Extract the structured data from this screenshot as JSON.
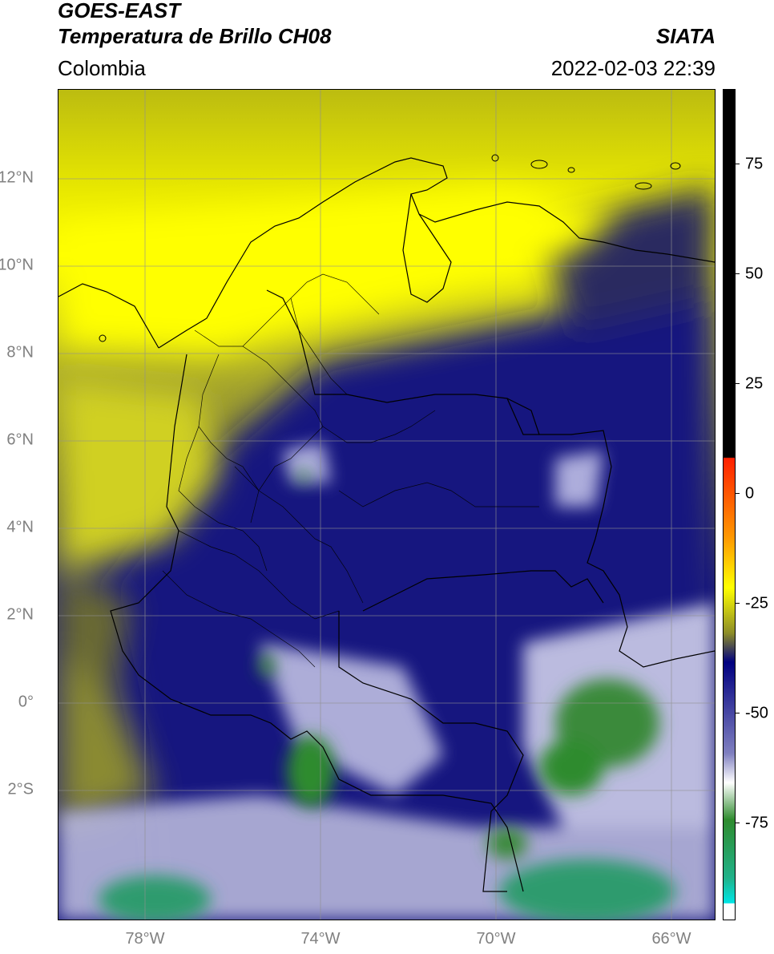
{
  "header": {
    "satellite": "GOES-EAST",
    "product": "Temperatura de Brillo CH08",
    "region": "Colombia",
    "organization": "SIATA",
    "datetime": "2022-02-03 22:39"
  },
  "map": {
    "lat_labels": [
      "12°N",
      "10°N",
      "8°N",
      "6°N",
      "4°N",
      "2°N",
      "0°",
      "2°S"
    ],
    "lon_labels": [
      "78°W",
      "74°W",
      "70°W",
      "66°W"
    ],
    "lat_values": [
      12,
      10,
      8,
      6,
      4,
      2,
      0,
      -2
    ],
    "lon_values": [
      -78,
      -74,
      -70,
      -66
    ],
    "extent": {
      "lon_min": -80,
      "lon_max": -65,
      "lat_min": -5,
      "lat_max": 14
    }
  },
  "colorbar": {
    "tick_labels": [
      "75",
      "50",
      "25",
      "0",
      "-25",
      "-50",
      "-75"
    ],
    "tick_values": [
      75,
      50,
      25,
      0,
      -25,
      -50,
      -75
    ],
    "range": [
      -95,
      90
    ],
    "colors": {
      "black": "#000000",
      "red": "#ff2000",
      "orange": "#ff9900",
      "yellow": "#ffff00",
      "olive": "#8c8c28",
      "navy": "#000080",
      "white": "#ffffff",
      "green": "#2e8b2e",
      "teal": "#20b28a",
      "cyan": "#00e5e5"
    }
  }
}
